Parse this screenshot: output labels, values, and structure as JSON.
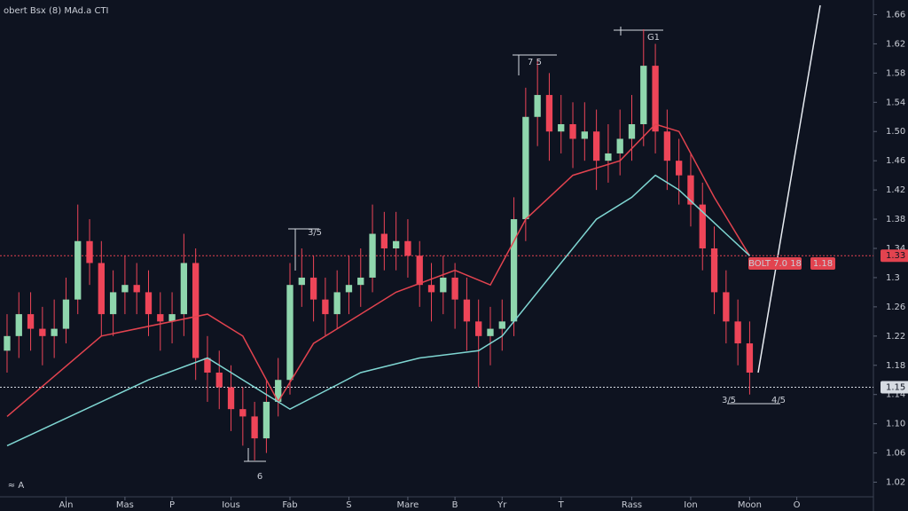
{
  "chart_data": {
    "type": "candlestick",
    "title": "obert Bsx (8) MAd.a CTI",
    "series": [
      {
        "color_up": "#8fd6ad",
        "color_down": "#ee4558",
        "open": [
          1.2,
          1.22,
          1.25,
          1.23,
          1.22,
          1.23,
          1.27,
          1.35,
          1.32,
          1.25,
          1.28,
          1.29,
          1.28,
          1.25,
          1.24,
          1.25,
          1.32,
          1.19,
          1.17,
          1.15,
          1.12,
          1.11,
          1.08,
          1.13,
          1.16,
          1.29,
          1.3,
          1.27,
          1.25,
          1.28,
          1.29,
          1.3,
          1.36,
          1.34,
          1.35,
          1.33,
          1.29,
          1.28,
          1.3,
          1.27,
          1.24,
          1.22,
          1.23,
          1.24,
          1.38,
          1.52,
          1.55,
          1.5,
          1.51,
          1.49,
          1.5,
          1.46,
          1.47,
          1.49,
          1.51,
          1.59,
          1.5,
          1.46,
          1.44,
          1.4,
          1.34,
          1.28,
          1.24,
          1.21
        ],
        "high": [
          1.25,
          1.28,
          1.28,
          1.26,
          1.27,
          1.3,
          1.4,
          1.38,
          1.35,
          1.31,
          1.33,
          1.32,
          1.31,
          1.28,
          1.28,
          1.36,
          1.34,
          1.22,
          1.2,
          1.18,
          1.15,
          1.13,
          1.16,
          1.19,
          1.32,
          1.34,
          1.33,
          1.3,
          1.31,
          1.33,
          1.34,
          1.4,
          1.39,
          1.39,
          1.38,
          1.35,
          1.32,
          1.33,
          1.32,
          1.3,
          1.27,
          1.26,
          1.27,
          1.41,
          1.56,
          1.6,
          1.58,
          1.55,
          1.54,
          1.54,
          1.53,
          1.51,
          1.53,
          1.55,
          1.64,
          1.62,
          1.53,
          1.49,
          1.47,
          1.43,
          1.37,
          1.31,
          1.27,
          1.24
        ],
        "low": [
          1.17,
          1.19,
          1.2,
          1.18,
          1.19,
          1.21,
          1.25,
          1.29,
          1.22,
          1.22,
          1.25,
          1.25,
          1.22,
          1.2,
          1.21,
          1.22,
          1.16,
          1.13,
          1.12,
          1.09,
          1.07,
          1.05,
          1.06,
          1.11,
          1.14,
          1.26,
          1.24,
          1.22,
          1.23,
          1.25,
          1.26,
          1.28,
          1.31,
          1.31,
          1.3,
          1.26,
          1.24,
          1.25,
          1.23,
          1.2,
          1.15,
          1.18,
          1.2,
          1.22,
          1.35,
          1.48,
          1.46,
          1.47,
          1.45,
          1.46,
          1.42,
          1.43,
          1.44,
          1.46,
          1.48,
          1.47,
          1.42,
          1.4,
          1.37,
          1.31,
          1.25,
          1.21,
          1.18,
          1.14
        ],
        "close": [
          1.22,
          1.25,
          1.23,
          1.22,
          1.23,
          1.27,
          1.35,
          1.32,
          1.25,
          1.28,
          1.29,
          1.28,
          1.25,
          1.24,
          1.25,
          1.32,
          1.19,
          1.17,
          1.15,
          1.12,
          1.11,
          1.08,
          1.13,
          1.16,
          1.29,
          1.3,
          1.27,
          1.25,
          1.28,
          1.29,
          1.3,
          1.36,
          1.34,
          1.35,
          1.33,
          1.29,
          1.28,
          1.3,
          1.27,
          1.24,
          1.22,
          1.23,
          1.24,
          1.38,
          1.52,
          1.55,
          1.5,
          1.51,
          1.49,
          1.5,
          1.46,
          1.47,
          1.49,
          1.51,
          1.59,
          1.5,
          1.46,
          1.44,
          1.4,
          1.34,
          1.28,
          1.24,
          1.21,
          1.17
        ]
      }
    ],
    "overlays": [
      {
        "color": "#e2434f",
        "x": [
          0,
          8,
          17,
          20,
          23,
          26,
          33,
          38,
          41,
          44,
          48,
          52,
          55,
          57,
          60,
          63
        ],
        "values": [
          1.11,
          1.22,
          1.25,
          1.22,
          1.13,
          1.21,
          1.28,
          1.31,
          1.29,
          1.38,
          1.44,
          1.46,
          1.51,
          1.5,
          1.41,
          1.33
        ]
      },
      {
        "color": "#7fd6d2",
        "x": [
          0,
          8,
          12,
          17,
          22,
          24,
          30,
          35,
          40,
          42,
          46,
          50,
          53,
          55,
          57,
          61,
          63
        ],
        "values": [
          1.07,
          1.13,
          1.16,
          1.19,
          1.14,
          1.12,
          1.17,
          1.19,
          1.2,
          1.22,
          1.3,
          1.38,
          1.41,
          1.44,
          1.42,
          1.36,
          1.33
        ]
      }
    ],
    "xlim": [
      -0.6,
      73.5
    ],
    "xticks": [
      {
        "value": 5,
        "label": "Aln"
      },
      {
        "value": 10,
        "label": "Mas"
      },
      {
        "value": 14,
        "label": "P"
      },
      {
        "value": 19,
        "label": "Ious"
      },
      {
        "value": 24,
        "label": "Fab"
      },
      {
        "value": 29,
        "label": "S"
      },
      {
        "value": 34,
        "label": "Mare"
      },
      {
        "value": 38,
        "label": "B"
      },
      {
        "value": 42,
        "label": "Yr"
      },
      {
        "value": 47,
        "label": "T"
      },
      {
        "value": 53,
        "label": "Rass"
      },
      {
        "value": 58,
        "label": "Ion"
      },
      {
        "value": 63,
        "label": "Moon"
      },
      {
        "value": 67,
        "label": "O"
      }
    ],
    "ylim": [
      1.0,
      1.68
    ],
    "yticks": [
      1.02,
      1.06,
      {
        "value": 1.1,
        "label": "1.10"
      },
      1.14,
      1.18,
      1.22,
      1.26,
      1.3,
      1.34,
      1.38,
      1.42,
      1.46,
      {
        "value": 1.5,
        "label": "1.50"
      },
      1.54,
      1.58,
      1.62,
      1.66
    ],
    "levels": [
      {
        "value": 1.33,
        "color": "#e2434f"
      },
      {
        "value": 1.15,
        "color": "#d6dbe2"
      }
    ],
    "annotations": [
      "G1",
      "7  5",
      "3/5",
      "3/5",
      "4/5",
      "6",
      "BOLT 7.0 18",
      "1.18",
      "≈ A"
    ]
  }
}
